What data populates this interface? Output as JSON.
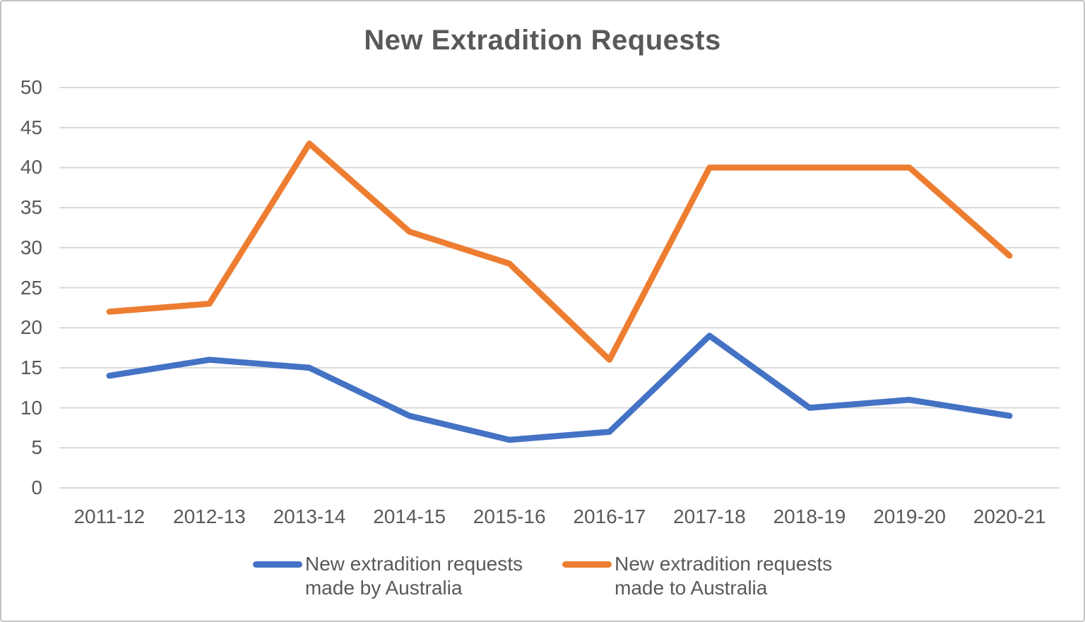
{
  "title": "New Extradition Requests",
  "colors": {
    "series_made_by_australia": "#4472C4",
    "series_made_to_australia": "#ED7D31",
    "gridline": "#D9D9D9",
    "text": "#595959",
    "border": "#C3C3C3",
    "background": "#FFFFFF"
  },
  "chart_data": {
    "type": "line",
    "title": "New Extradition Requests",
    "categories": [
      "2011-12",
      "2012-13",
      "2013-14",
      "2014-15",
      "2015-16",
      "2016-17",
      "2017-18",
      "2018-19",
      "2019-20",
      "2020-21"
    ],
    "series": [
      {
        "name": "New extradition requests made by Australia",
        "color": "#4472C4",
        "values": [
          14,
          16,
          15,
          9,
          6,
          7,
          19,
          10,
          11,
          9
        ]
      },
      {
        "name": "New extradition requests made to Australia",
        "color": "#ED7D31",
        "values": [
          22,
          23,
          43,
          32,
          28,
          16,
          40,
          40,
          40,
          29
        ]
      }
    ],
    "xlabel": "",
    "ylabel": "",
    "ylim": [
      0,
      50
    ],
    "ytick_step": 5,
    "yticks": [
      0,
      5,
      10,
      15,
      20,
      25,
      30,
      35,
      40,
      45,
      50
    ],
    "grid": "horizontal",
    "legend_position": "bottom"
  },
  "legend": {
    "items": [
      {
        "label_line1": "New extradition requests",
        "label_line2": "made by Australia",
        "color": "#4472C4"
      },
      {
        "label_line1": "New extradition requests",
        "label_line2": "made to Australia",
        "color": "#ED7D31"
      }
    ]
  }
}
